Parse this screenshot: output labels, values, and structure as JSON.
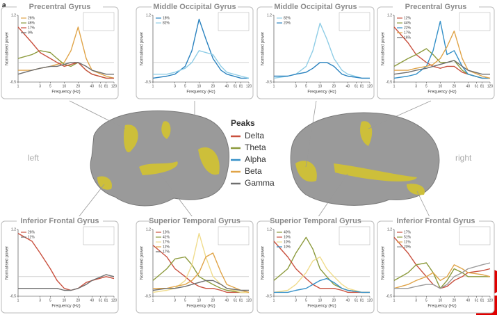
{
  "figure_label": "a",
  "left_label": "left",
  "right_label": "right",
  "peaks_legend": {
    "title": "Peaks",
    "items": [
      {
        "name": "Delta",
        "color": "#c9503e"
      },
      {
        "name": "Theta",
        "color": "#8c9a3c"
      },
      {
        "name": "Alpha",
        "color": "#3490c8"
      },
      {
        "name": "Beta",
        "color": "#e0a448"
      },
      {
        "name": "Gamma",
        "color": "#6e6e6e"
      }
    ]
  },
  "chart_data": [
    {
      "type": "line",
      "title": "Precentral Gyrus",
      "y_label": "Normalised power",
      "x_label": "Frequency (Hz)",
      "log_x": true,
      "xlim": [
        1,
        120
      ],
      "xticks": [
        1,
        3,
        5,
        10,
        20,
        40,
        61,
        81,
        120
      ],
      "ylim": [
        -0.5,
        1.2
      ],
      "yticks": [
        -0.5,
        1.2
      ],
      "baseline": 0,
      "x": [
        1,
        2,
        3,
        5,
        7,
        10,
        14,
        20,
        30,
        40,
        81,
        120
      ],
      "series": [
        {
          "name": "26%",
          "color": "#e0a448",
          "values": [
            -0.2,
            -0.2,
            -0.15,
            -0.1,
            -0.05,
            0.0,
            0.3,
            0.9,
            0.1,
            -0.2,
            -0.35,
            -0.4
          ]
        },
        {
          "name": "46%",
          "color": "#8c9a3c",
          "values": [
            0.1,
            0.2,
            0.3,
            0.25,
            0.1,
            -0.05,
            -0.1,
            0.0,
            -0.2,
            -0.3,
            -0.4,
            -0.4
          ]
        },
        {
          "name": "17%",
          "color": "#c9503e",
          "values": [
            0.9,
            0.5,
            0.25,
            0.1,
            0.0,
            -0.1,
            -0.05,
            0.0,
            -0.2,
            -0.3,
            -0.4,
            -0.4
          ]
        },
        {
          "name": "9%",
          "color": "#6e6e6e",
          "values": [
            -0.3,
            -0.2,
            -0.15,
            -0.1,
            -0.1,
            -0.05,
            0.0,
            0.0,
            -0.1,
            -0.2,
            -0.3,
            -0.3
          ]
        }
      ]
    },
    {
      "type": "line",
      "title": "Middle Occipital Gyrus",
      "y_label": "Normalised power",
      "x_label": "Frequency (Hz)",
      "log_x": true,
      "xlim": [
        1,
        120
      ],
      "xticks": [
        1,
        3,
        5,
        10,
        20,
        40,
        61,
        81,
        120
      ],
      "ylim": [
        -0.5,
        1.2
      ],
      "yticks": [
        -0.5,
        1.2
      ],
      "baseline": 0,
      "x": [
        1,
        2,
        3,
        5,
        7,
        10,
        14,
        20,
        30,
        40,
        81,
        120
      ],
      "series": [
        {
          "name": "18%",
          "color": "#2a82bf",
          "values": [
            -0.4,
            -0.35,
            -0.3,
            -0.1,
            0.3,
            1.1,
            0.6,
            0.1,
            -0.2,
            -0.3,
            -0.4,
            -0.4
          ]
        },
        {
          "name": "82%",
          "color": "#8fcde6",
          "values": [
            -0.3,
            -0.3,
            -0.25,
            -0.15,
            0.0,
            0.3,
            0.25,
            0.2,
            -0.1,
            -0.25,
            -0.35,
            -0.4
          ]
        }
      ]
    },
    {
      "type": "line",
      "title": "Middle Occipital Gyrus",
      "y_label": "Normalised power",
      "x_label": "Frequency (Hz)",
      "log_x": true,
      "xlim": [
        1,
        120
      ],
      "xticks": [
        1,
        3,
        5,
        10,
        20,
        40,
        61,
        81,
        120
      ],
      "ylim": [
        -0.5,
        1.2
      ],
      "yticks": [
        -0.5,
        1.2
      ],
      "baseline": 0,
      "x": [
        1,
        2,
        3,
        5,
        7,
        10,
        14,
        20,
        30,
        40,
        81,
        120
      ],
      "series": [
        {
          "name": "82%",
          "color": "#8fcde6",
          "values": [
            -0.4,
            -0.35,
            -0.3,
            -0.1,
            0.3,
            1.0,
            0.6,
            0.1,
            -0.2,
            -0.3,
            -0.4,
            -0.4
          ]
        },
        {
          "name": "20%",
          "color": "#2a82bf",
          "values": [
            -0.35,
            -0.35,
            -0.3,
            -0.25,
            -0.15,
            0.0,
            0.0,
            -0.1,
            -0.3,
            -0.35,
            -0.4,
            -0.4
          ]
        }
      ]
    },
    {
      "type": "line",
      "title": "Precentral Gyrus",
      "y_label": "Normalised power",
      "x_label": "Frequency (Hz)",
      "log_x": true,
      "xlim": [
        1,
        120
      ],
      "xticks": [
        1,
        3,
        5,
        10,
        20,
        40,
        61,
        81,
        120
      ],
      "ylim": [
        -0.5,
        1.2
      ],
      "yticks": [
        -0.5,
        1.2
      ],
      "baseline": 0,
      "x": [
        1,
        2,
        3,
        5,
        7,
        10,
        14,
        20,
        30,
        40,
        81,
        120
      ],
      "series": [
        {
          "name": "12%",
          "color": "#c9503e",
          "values": [
            0.9,
            0.5,
            0.2,
            0.0,
            -0.1,
            -0.15,
            -0.1,
            -0.1,
            -0.25,
            -0.3,
            -0.4,
            -0.4
          ]
        },
        {
          "name": "44%",
          "color": "#8c9a3c",
          "values": [
            -0.1,
            0.1,
            0.2,
            0.35,
            0.2,
            0.0,
            0.0,
            0.05,
            -0.2,
            -0.3,
            -0.4,
            -0.4
          ]
        },
        {
          "name": "22%",
          "color": "#3490c8",
          "values": [
            -0.4,
            -0.35,
            -0.3,
            -0.1,
            0.3,
            1.05,
            0.2,
            0.3,
            -0.1,
            -0.3,
            -0.4,
            -0.4
          ]
        },
        {
          "name": "17%",
          "color": "#e0a448",
          "values": [
            -0.2,
            -0.2,
            -0.15,
            -0.1,
            -0.05,
            0.1,
            0.4,
            0.8,
            0.1,
            -0.2,
            -0.35,
            -0.4
          ]
        },
        {
          "name": "16%",
          "color": "#6e6e6e",
          "values": [
            -0.3,
            -0.25,
            -0.2,
            -0.15,
            -0.1,
            -0.05,
            0.0,
            0.05,
            -0.1,
            -0.2,
            -0.3,
            -0.3
          ]
        }
      ]
    },
    {
      "type": "line",
      "title": "Inferior Frontal Gyrus",
      "y_label": "Normalised power",
      "x_label": "Frequency (Hz)",
      "log_x": true,
      "xlim": [
        1,
        120
      ],
      "xticks": [
        1,
        3,
        5,
        10,
        20,
        40,
        61,
        81,
        120
      ],
      "ylim": [
        -0.5,
        1.2
      ],
      "yticks": [
        -0.5,
        1.2
      ],
      "baseline": 0,
      "x": [
        1,
        2,
        3,
        5,
        7,
        10,
        14,
        20,
        30,
        40,
        81,
        120
      ],
      "series": [
        {
          "name": "26%",
          "color": "#c9503e",
          "values": [
            1.1,
            0.9,
            0.6,
            0.2,
            -0.1,
            -0.3,
            -0.35,
            -0.3,
            -0.15,
            -0.1,
            0.0,
            -0.05
          ]
        },
        {
          "name": "11%",
          "color": "#6e6e6e",
          "values": [
            -0.3,
            -0.3,
            -0.3,
            -0.3,
            -0.3,
            -0.35,
            -0.35,
            -0.3,
            -0.2,
            -0.1,
            0.05,
            0.0
          ]
        }
      ]
    },
    {
      "type": "line",
      "title": "Superior Temporal Gyrus",
      "y_label": "Normalised power",
      "x_label": "Frequency (Hz)",
      "log_x": true,
      "xlim": [
        1,
        120
      ],
      "xticks": [
        1,
        3,
        5,
        10,
        20,
        40,
        61,
        81,
        120
      ],
      "ylim": [
        -0.5,
        1.2
      ],
      "yticks": [
        -0.5,
        1.2
      ],
      "baseline": 0,
      "x": [
        1,
        2,
        3,
        5,
        7,
        10,
        14,
        20,
        30,
        40,
        81,
        120
      ],
      "series": [
        {
          "name": "13%",
          "color": "#c9503e",
          "values": [
            0.8,
            0.5,
            0.2,
            0.0,
            -0.15,
            -0.25,
            -0.3,
            -0.3,
            -0.35,
            -0.4,
            -0.4,
            -0.4
          ]
        },
        {
          "name": "41%",
          "color": "#8c9a3c",
          "values": [
            -0.1,
            0.2,
            0.45,
            0.5,
            0.3,
            0.0,
            -0.1,
            -0.2,
            -0.3,
            -0.35,
            -0.4,
            -0.4
          ]
        },
        {
          "name": "17%",
          "color": "#f0dc8c",
          "values": [
            -0.4,
            -0.35,
            -0.3,
            -0.1,
            0.3,
            1.1,
            0.5,
            0.0,
            -0.2,
            -0.3,
            -0.4,
            -0.4
          ]
        },
        {
          "name": "12%",
          "color": "#e0a448",
          "values": [
            -0.3,
            -0.3,
            -0.25,
            -0.2,
            -0.1,
            0.1,
            0.5,
            0.6,
            0.1,
            -0.2,
            -0.35,
            -0.4
          ]
        },
        {
          "name": "17%",
          "color": "#6e6e6e",
          "values": [
            -0.35,
            -0.3,
            -0.3,
            -0.25,
            -0.2,
            -0.15,
            -0.1,
            -0.1,
            -0.2,
            -0.3,
            -0.35,
            -0.35
          ]
        }
      ]
    },
    {
      "type": "line",
      "title": "Superior Temporal Gyrus",
      "y_label": "Normalised power",
      "x_label": "Frequency (Hz)",
      "log_x": true,
      "xlim": [
        1,
        120
      ],
      "xticks": [
        1,
        3,
        5,
        10,
        20,
        40,
        61,
        81,
        120
      ],
      "ylim": [
        -0.5,
        1.2
      ],
      "yticks": [
        -0.5,
        1.2
      ],
      "baseline": 0,
      "x": [
        1,
        2,
        3,
        5,
        7,
        10,
        14,
        20,
        30,
        40,
        81,
        120
      ],
      "series": [
        {
          "name": "40%",
          "color": "#8c9a3c",
          "values": [
            -0.1,
            0.2,
            0.6,
            1.0,
            0.7,
            0.2,
            0.0,
            -0.2,
            -0.3,
            -0.35,
            -0.4,
            -0.4
          ]
        },
        {
          "name": "10%",
          "color": "#c9503e",
          "values": [
            0.9,
            0.5,
            0.2,
            -0.05,
            -0.2,
            -0.3,
            -0.3,
            -0.3,
            -0.35,
            -0.4,
            -0.4,
            -0.4
          ]
        },
        {
          "name": "10%",
          "color": "#f0dc8c",
          "values": [
            -0.4,
            -0.35,
            -0.2,
            0.1,
            0.4,
            0.5,
            0.2,
            0.0,
            -0.2,
            -0.3,
            -0.4,
            -0.4
          ]
        },
        {
          "name": "10%",
          "color": "#3490c8",
          "values": [
            -0.4,
            -0.4,
            -0.35,
            -0.3,
            -0.2,
            -0.1,
            -0.05,
            -0.15,
            -0.3,
            -0.35,
            -0.4,
            -0.4
          ]
        }
      ]
    },
    {
      "type": "line",
      "title": "Inferior Frontal Gyrus",
      "y_label": "Normalised power",
      "x_label": "Frequency (Hz)",
      "log_x": true,
      "xlim": [
        1,
        120
      ],
      "xticks": [
        1,
        3,
        5,
        10,
        20,
        40,
        61,
        81,
        120
      ],
      "ylim": [
        -0.5,
        1.2
      ],
      "yticks": [
        -0.5,
        1.2
      ],
      "baseline": 0,
      "x": [
        1,
        2,
        3,
        5,
        7,
        10,
        14,
        20,
        30,
        40,
        81,
        120
      ],
      "series": [
        {
          "name": "17%",
          "color": "#c9503e",
          "values": [
            1.0,
            0.6,
            0.3,
            0.0,
            -0.2,
            -0.3,
            -0.25,
            -0.1,
            0.0,
            0.1,
            0.15,
            0.2
          ]
        },
        {
          "name": "51%",
          "color": "#8c9a3c",
          "values": [
            -0.1,
            0.1,
            0.3,
            0.35,
            0.1,
            -0.3,
            -0.1,
            0.2,
            0.1,
            0.0,
            0.0,
            0.0
          ]
        },
        {
          "name": "11%",
          "color": "#e0a448",
          "values": [
            -0.3,
            -0.2,
            -0.1,
            0.0,
            0.1,
            -0.1,
            0.0,
            0.3,
            0.2,
            0.1,
            0.05,
            0.0
          ]
        },
        {
          "name": "20%",
          "color": "#9a9a9a",
          "values": [
            -0.3,
            -0.3,
            -0.25,
            -0.2,
            -0.2,
            -0.3,
            -0.2,
            0.0,
            0.1,
            0.2,
            0.3,
            0.35
          ]
        }
      ]
    }
  ]
}
